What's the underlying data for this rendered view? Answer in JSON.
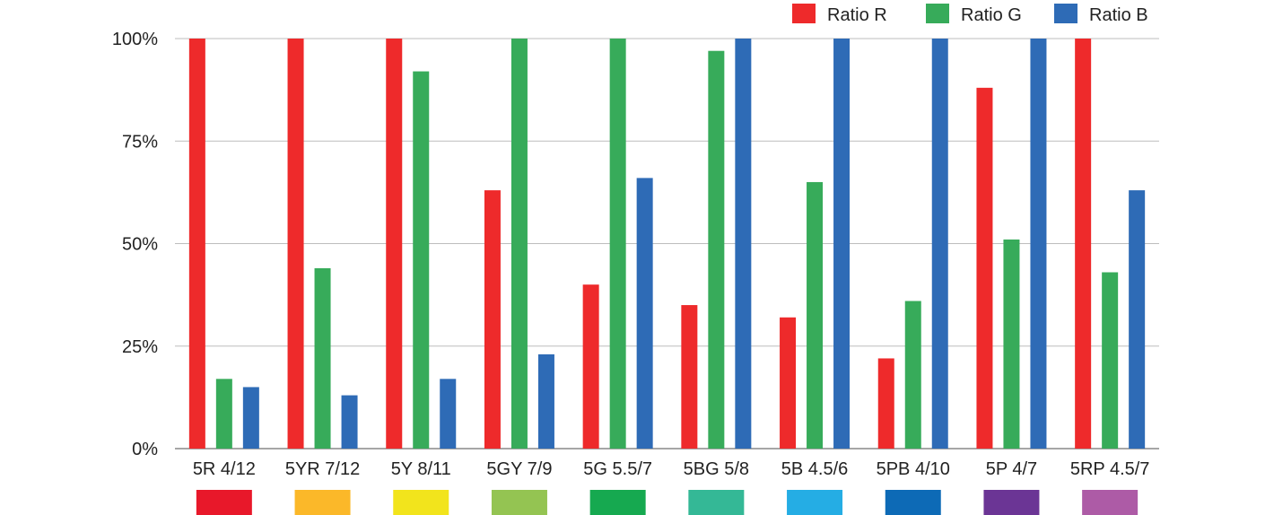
{
  "chart_data": {
    "type": "bar",
    "categories": [
      "5R 4/12",
      "5YR 7/12",
      "5Y 8/11",
      "5GY 7/9",
      "5G 5.5/7",
      "5BG 5/8",
      "5B 4.5/6",
      "5PB 4/10",
      "5P 4/7",
      "5RP 4.5/7"
    ],
    "series": [
      {
        "name": "Ratio R",
        "color": "#ee2a2b",
        "values": [
          100,
          100,
          100,
          63,
          40,
          35,
          32,
          22,
          88,
          100
        ]
      },
      {
        "name": "Ratio G",
        "color": "#37ab5a",
        "values": [
          17,
          44,
          92,
          100,
          100,
          97,
          65,
          36,
          51,
          43
        ]
      },
      {
        "name": "Ratio B",
        "color": "#2e6bb6",
        "values": [
          15,
          13,
          17,
          23,
          66,
          100,
          100,
          100,
          100,
          63
        ]
      }
    ],
    "swatch_colors": [
      "#e8182a",
      "#fbb829",
      "#f2e41c",
      "#94c452",
      "#16a950",
      "#34b896",
      "#25ade4",
      "#0d6ab6",
      "#6b3595",
      "#ad5ba6"
    ],
    "ylim": [
      0,
      100
    ],
    "yticks": [
      "0%",
      "25%",
      "50%",
      "75%",
      "100%"
    ],
    "ytick_values": [
      0,
      25,
      50,
      75,
      100
    ],
    "grid": true,
    "legend_position": "top-right",
    "title": "",
    "xlabel": "",
    "ylabel": ""
  }
}
